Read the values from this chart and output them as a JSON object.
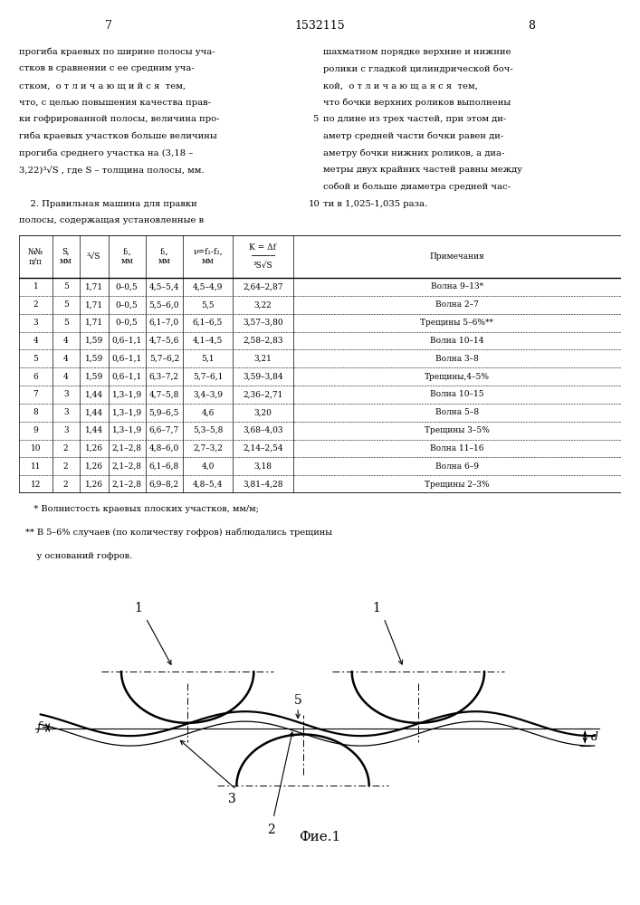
{
  "page_numbers": [
    "7",
    "1532115",
    "8"
  ],
  "left_text": [
    "прогиба краевых по ширине полосы уча-",
    "стков в сравнении с ее средним уча-",
    "стком,  о т л и ч а ю щ и й с я  тем,",
    "что, с целью повышения качества прав-",
    "ки гофрированной полосы, величина про-",
    "гиба краевых участков больше величины",
    "прогиба среднего участка на (3,18 –",
    "3,22)³√S , где S – толщина полосы, мм.",
    "",
    "    2. Правильная машина для правки",
    "полосы, содержащая установленные в"
  ],
  "right_text": [
    "шахматном порядке верхние и нижние",
    "ролики с гладкой цилиндрической боч-",
    "кой,  о т л и ч а ю щ а я с я  тем,",
    "что бочки верхних роликов выполнены",
    "по длине из трех частей, при этом ди-",
    "аметр средней части бочки равен ди-",
    "аметру бочки нижних роликов, а диа-",
    "метры двух крайних частей равны между",
    "собой и больше диаметра средней час-",
    "ти в 1,025-1,035 раза."
  ],
  "table_headers_row1": [
    "№№",
    "S,",
    "",
    "f₂,",
    "f₁,",
    "ν=f₁-f₂,",
    "K = Δf",
    ""
  ],
  "table_headers_row2": [
    "п/п",
    "мм",
    "³√S",
    "мм",
    "мм",
    "мм",
    "―――――",
    "Примечания"
  ],
  "table_headers_row3": [
    "",
    "",
    "",
    "",
    "",
    "",
    "³S√S",
    ""
  ],
  "table_data": [
    [
      "1",
      "5",
      "1,71",
      "0–0,5",
      "4,5–5,4",
      "4,5–4,9",
      "2,64–2,87",
      "Волна 9–13*"
    ],
    [
      "2",
      "5",
      "1,71",
      "0–0,5",
      "5,5–6,0",
      "5,5",
      "3,22",
      "Волна 2–7"
    ],
    [
      "3",
      "5",
      "1,71",
      "0–0,5",
      "6,1–7,0",
      "6,1–6,5",
      "3,57–3,80",
      "Трещины 5–6%**"
    ],
    [
      "4",
      "4",
      "1,59",
      "0,6–1,1",
      "4,7–5,6",
      "4,1–4,5",
      "2,58–2,83",
      "Волна 10–14"
    ],
    [
      "5",
      "4",
      "1,59",
      "0,6–1,1",
      "5,7–6,2",
      "5,1",
      "3,21",
      "Волна 3–8"
    ],
    [
      "6",
      "4",
      "1,59",
      "0,6–1,1",
      "6,3–7,2",
      "5,7–6,1",
      "3,59–3,84",
      "Трещины,4–5%"
    ],
    [
      "7",
      "3",
      "1,44",
      "1,3–1,9",
      "4,7–5,8",
      "3,4–3,9",
      "2,36–2,71",
      "Волна 10–15"
    ],
    [
      "8",
      "3",
      "1,44",
      "1,3–1,9",
      "5,9–6,5",
      "4,6",
      "3,20",
      "Волна 5–8"
    ],
    [
      "9",
      "3",
      "1,44",
      "1,3–1,9",
      "6,6–7,7",
      "5,3–5,8",
      "3,68–4,03",
      "Трещины 3–5%"
    ],
    [
      "10",
      "2",
      "1,26",
      "2,1–2,8",
      "4,8–6,0",
      "2,7–3,2",
      "2,14–2,54",
      "Волна 11–16"
    ],
    [
      "11",
      "2",
      "1,26",
      "2,1–2,8",
      "6,1–6,8",
      "4,0",
      "3,18",
      "Волна 6–9"
    ],
    [
      "12",
      "2",
      "1,26",
      "2,1–2,8",
      "6,9–8,2",
      "4,8–5,4",
      "3,81–4,28",
      "Трещины 2–3%"
    ]
  ],
  "footnotes": [
    "   * Волнистость краевых плоских участков, мм/м;",
    "** В 5–6% случаев (по количеству гофров) наблюдались трещины",
    "    у оснований гофров."
  ],
  "fig_caption": "Фие.1",
  "bg_color": "#ffffff",
  "text_color": "#000000",
  "font_size_main": 7.2,
  "font_size_table": 6.5,
  "font_size_header": 6.5,
  "font_size_footnote": 7.0
}
